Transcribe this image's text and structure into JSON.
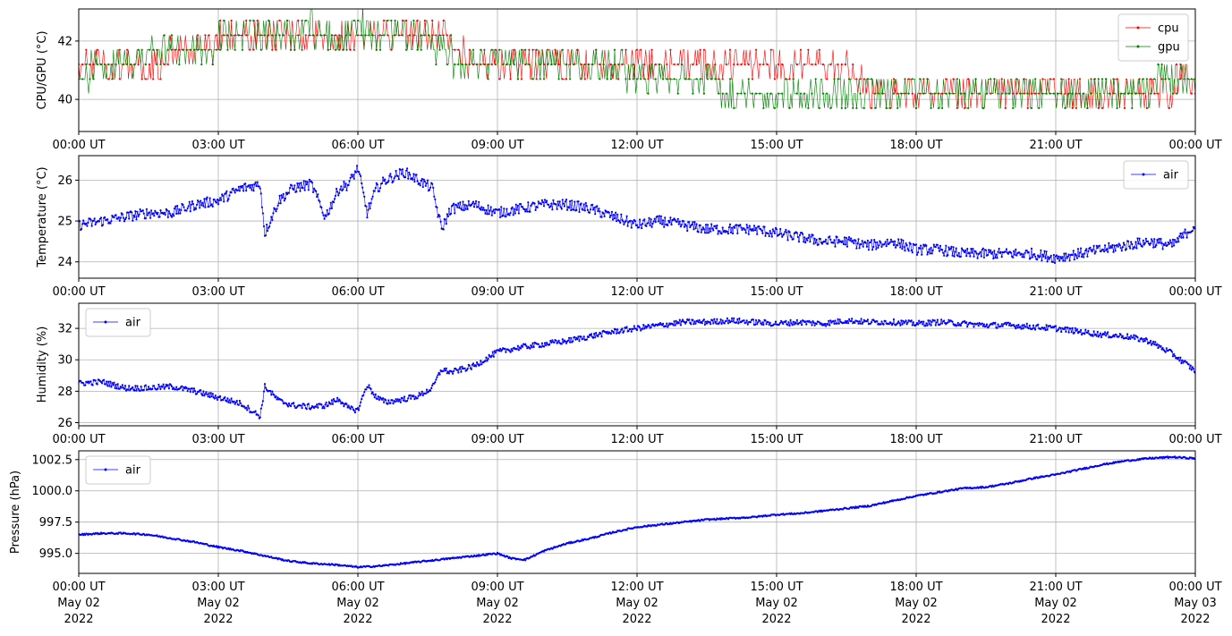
{
  "figure": {
    "x_ticks": [
      "00:00 UT",
      "03:00 UT",
      "06:00 UT",
      "09:00 UT",
      "12:00 UT",
      "15:00 UT",
      "18:00 UT",
      "21:00 UT",
      "00:00 UT"
    ],
    "x_date_lines": [
      "May 02",
      "May 02",
      "May 02",
      "May 02",
      "May 02",
      "May 02",
      "May 02",
      "May 02",
      "May 03"
    ],
    "x_year_lines": [
      "2022",
      "2022",
      "2022",
      "2022",
      "2022",
      "2022",
      "2022",
      "2022",
      "2022"
    ]
  },
  "chart_data": [
    {
      "type": "line",
      "ylabel": "CPU/GPU (°C)",
      "ylim": [
        38.9,
        43.1
      ],
      "yticks": [
        40,
        42
      ],
      "ytick_labels": [
        "40",
        "42"
      ],
      "xlim": [
        "2022-05-02 00:00",
        "2022-05-03 00:00"
      ],
      "grid": true,
      "legend": "top-right",
      "series": [
        {
          "name": "cpu",
          "color": "#ff0000",
          "x_hours": [
            0,
            0.5,
            1,
            1.5,
            2,
            2.5,
            3,
            3.5,
            4,
            4.5,
            5,
            5.5,
            6,
            6.5,
            7,
            7.5,
            8,
            8.5,
            9,
            9.5,
            10,
            10.5,
            11,
            11.5,
            12,
            12.5,
            13,
            13.5,
            14,
            14.5,
            15,
            15.5,
            16,
            16.5,
            17,
            17.5,
            18,
            18.5,
            19,
            19.5,
            20,
            20.5,
            21,
            21.5,
            22,
            22.5,
            23,
            23.5,
            24
          ],
          "values": [
            40.8,
            40.8,
            40.8,
            40.9,
            41.3,
            41.3,
            41.8,
            41.8,
            41.8,
            41.8,
            41.8,
            41.8,
            41.8,
            42.2,
            41.8,
            41.8,
            41.8,
            40.8,
            40.8,
            40.8,
            40.8,
            40.8,
            40.8,
            40.8,
            40.8,
            40.8,
            40.8,
            40.8,
            40.8,
            40.8,
            40.8,
            40.8,
            40.8,
            40.8,
            40.2,
            40.2,
            40.2,
            40.2,
            40.2,
            40.2,
            40.2,
            40.2,
            40.2,
            40.2,
            40.2,
            40.2,
            40.2,
            40.2,
            40.7
          ]
        },
        {
          "name": "gpu",
          "color": "#008000",
          "x_hours": [
            0,
            0.5,
            1,
            1.5,
            2,
            2.5,
            3,
            3.5,
            4,
            4.5,
            5,
            5.5,
            6,
            6.5,
            7,
            7.5,
            8,
            8.5,
            9,
            9.5,
            10,
            10.5,
            11,
            11.5,
            12,
            12.5,
            13,
            13.5,
            14,
            14.5,
            15,
            15.5,
            16,
            16.5,
            17,
            17.5,
            18,
            18.5,
            19,
            19.5,
            20,
            20.5,
            21,
            21.5,
            22,
            22.5,
            23,
            23.5,
            24
          ],
          "values": [
            40.7,
            40.8,
            40.8,
            41.3,
            41.3,
            41.3,
            41.8,
            41.8,
            41.8,
            42.2,
            42.3,
            41.8,
            42.4,
            41.8,
            41.8,
            41.8,
            41.3,
            40.8,
            40.8,
            40.8,
            40.8,
            40.8,
            40.8,
            40.8,
            40.7,
            40.7,
            40.7,
            40.3,
            40.2,
            40.2,
            40.2,
            40.2,
            40.2,
            40.2,
            40.2,
            39.8,
            40.2,
            40.2,
            40.2,
            40.2,
            39.8,
            40.2,
            39.8,
            40.2,
            40.2,
            40.2,
            40.2,
            40.7,
            40.7
          ]
        }
      ]
    },
    {
      "type": "line",
      "ylabel": "Temperature (°C)",
      "ylim": [
        23.6,
        26.6
      ],
      "yticks": [
        24,
        25,
        26
      ],
      "ytick_labels": [
        "24",
        "25",
        "26"
      ],
      "xlim": [
        "2022-05-02 00:00",
        "2022-05-03 00:00"
      ],
      "grid": true,
      "legend": "top-right",
      "series": [
        {
          "name": "air",
          "color": "#0000ff",
          "x_hours": [
            0,
            0.5,
            1,
            1.5,
            2,
            2.5,
            3,
            3.5,
            3.9,
            4.0,
            4.3,
            4.6,
            5,
            5.3,
            5.6,
            5.8,
            6.0,
            6.2,
            6.4,
            6.6,
            7.0,
            7.3,
            7.6,
            7.8,
            8.0,
            8.5,
            9,
            9.5,
            10,
            10.5,
            11,
            11.5,
            12,
            12.5,
            13,
            13.5,
            14,
            14.5,
            15,
            15.5,
            16,
            16.5,
            17,
            17.5,
            18,
            18.5,
            19,
            19.5,
            20,
            20.5,
            21,
            21.5,
            22,
            22.5,
            23,
            23.5,
            24
          ],
          "values": [
            24.9,
            25.0,
            25.1,
            25.2,
            25.2,
            25.4,
            25.5,
            25.8,
            25.9,
            24.7,
            25.5,
            25.8,
            25.9,
            25.1,
            25.8,
            25.9,
            26.3,
            25.2,
            25.8,
            26.0,
            26.2,
            26.0,
            25.8,
            24.8,
            25.3,
            25.4,
            25.2,
            25.3,
            25.4,
            25.4,
            25.3,
            25.1,
            24.9,
            25.0,
            24.9,
            24.8,
            24.8,
            24.8,
            24.7,
            24.6,
            24.5,
            24.5,
            24.4,
            24.5,
            24.3,
            24.3,
            24.2,
            24.2,
            24.2,
            24.2,
            24.1,
            24.2,
            24.3,
            24.4,
            24.5,
            24.4,
            24.9
          ]
        }
      ]
    },
    {
      "type": "line",
      "ylabel": "Humidity (%)",
      "ylim": [
        25.8,
        33.6
      ],
      "yticks": [
        26,
        28,
        30,
        32
      ],
      "ytick_labels": [
        "26",
        "28",
        "30",
        "32"
      ],
      "xlim": [
        "2022-05-02 00:00",
        "2022-05-03 00:00"
      ],
      "grid": true,
      "legend": "top-left",
      "series": [
        {
          "name": "air",
          "color": "#0000ff",
          "x_hours": [
            0,
            0.5,
            1,
            1.5,
            2,
            2.5,
            3,
            3.5,
            3.9,
            4.0,
            4.3,
            4.6,
            5,
            5.3,
            5.6,
            5.8,
            6.0,
            6.2,
            6.4,
            6.6,
            7.0,
            7.3,
            7.6,
            7.8,
            8.0,
            8.5,
            9,
            9.5,
            10,
            10.5,
            11,
            11.5,
            12,
            12.5,
            13,
            13.5,
            14,
            14.5,
            15,
            15.5,
            16,
            16.5,
            17,
            17.5,
            18,
            18.5,
            19,
            19.5,
            20,
            20.5,
            21,
            21.5,
            22,
            22.5,
            23,
            23.5,
            24
          ],
          "values": [
            28.5,
            28.6,
            28.2,
            28.2,
            28.3,
            28.0,
            27.6,
            27.2,
            26.4,
            28.3,
            27.4,
            27.1,
            27.0,
            27.1,
            27.5,
            26.9,
            26.8,
            28.4,
            27.6,
            27.3,
            27.5,
            27.7,
            28.2,
            29.4,
            29.2,
            29.6,
            30.5,
            30.8,
            31.0,
            31.2,
            31.5,
            31.8,
            32.0,
            32.2,
            32.4,
            32.4,
            32.5,
            32.4,
            32.3,
            32.4,
            32.3,
            32.5,
            32.4,
            32.4,
            32.3,
            32.4,
            32.3,
            32.2,
            32.2,
            32.1,
            32.0,
            31.8,
            31.6,
            31.5,
            31.2,
            30.4,
            29.3
          ]
        }
      ]
    },
    {
      "type": "line",
      "ylabel": "Pressure (hPa)",
      "ylim": [
        993.4,
        1003.2
      ],
      "yticks": [
        995.0,
        997.5,
        1000.0,
        1002.5
      ],
      "ytick_labels": [
        "995.0",
        "997.5",
        "1000.0",
        "1002.5"
      ],
      "xlim": [
        "2022-05-02 00:00",
        "2022-05-03 00:00"
      ],
      "grid": true,
      "legend": "top-left",
      "series": [
        {
          "name": "air",
          "color": "#0000ff",
          "x_hours": [
            0,
            0.5,
            1,
            1.5,
            2,
            2.5,
            3,
            3.5,
            4,
            4.5,
            5,
            5.5,
            6,
            6.5,
            7,
            7.5,
            8,
            8.5,
            9,
            9.3,
            9.6,
            10,
            10.5,
            11,
            11.5,
            12,
            12.5,
            13,
            13.5,
            14,
            14.5,
            15,
            15.5,
            16,
            16.5,
            17,
            17.5,
            18,
            18.5,
            19,
            19.5,
            20,
            20.5,
            21,
            21.5,
            22,
            22.5,
            23,
            23.5,
            24
          ],
          "values": [
            996.5,
            996.6,
            996.6,
            996.5,
            996.2,
            995.9,
            995.5,
            995.2,
            994.8,
            994.4,
            994.2,
            994.1,
            993.9,
            994.0,
            994.2,
            994.4,
            994.6,
            994.8,
            995.0,
            994.6,
            994.5,
            995.2,
            995.8,
            996.2,
            996.7,
            997.1,
            997.3,
            997.5,
            997.7,
            997.8,
            997.9,
            998.1,
            998.2,
            998.4,
            998.6,
            998.8,
            999.2,
            999.6,
            999.9,
            1000.2,
            1000.3,
            1000.6,
            1001.0,
            1001.3,
            1001.7,
            1002.1,
            1002.4,
            1002.6,
            1002.7,
            1002.6
          ]
        }
      ]
    }
  ]
}
